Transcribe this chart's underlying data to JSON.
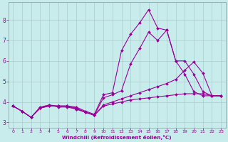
{
  "xlabel": "Windchill (Refroidissement éolien,°C)",
  "bg_color": "#c8ecec",
  "line_color": "#990099",
  "grid_color": "#aacccc",
  "xlim": [
    -0.5,
    23.5
  ],
  "ylim": [
    2.75,
    8.85
  ],
  "xticks": [
    0,
    1,
    2,
    3,
    4,
    5,
    6,
    7,
    8,
    9,
    10,
    11,
    12,
    13,
    14,
    15,
    16,
    17,
    18,
    19,
    20,
    21,
    22,
    23
  ],
  "yticks": [
    3,
    4,
    5,
    6,
    7,
    8
  ],
  "s1": [
    3.8,
    3.55,
    3.25,
    3.75,
    3.85,
    3.8,
    3.8,
    3.75,
    3.55,
    3.4,
    4.35,
    4.45,
    6.5,
    7.3,
    7.85,
    8.5,
    7.6,
    7.5,
    6.0,
    6.0,
    5.35,
    4.5,
    4.3,
    4.3
  ],
  "s2": [
    3.8,
    3.55,
    3.25,
    3.7,
    3.85,
    3.75,
    3.75,
    3.65,
    3.5,
    3.35,
    4.2,
    4.35,
    4.55,
    5.85,
    6.6,
    7.4,
    7.0,
    7.5,
    6.0,
    5.35,
    4.5,
    4.3,
    4.3,
    4.3
  ],
  "s3": [
    3.8,
    3.55,
    3.25,
    3.7,
    3.8,
    3.8,
    3.8,
    3.7,
    3.5,
    3.35,
    3.85,
    4.0,
    4.15,
    4.3,
    4.45,
    4.6,
    4.75,
    4.9,
    5.1,
    5.55,
    5.95,
    5.4,
    4.3,
    4.3
  ],
  "s4": [
    3.8,
    3.55,
    3.25,
    3.7,
    3.8,
    3.8,
    3.8,
    3.65,
    3.5,
    3.35,
    3.8,
    3.9,
    4.0,
    4.1,
    4.15,
    4.2,
    4.25,
    4.3,
    4.35,
    4.4,
    4.4,
    4.4,
    4.3,
    4.3
  ]
}
